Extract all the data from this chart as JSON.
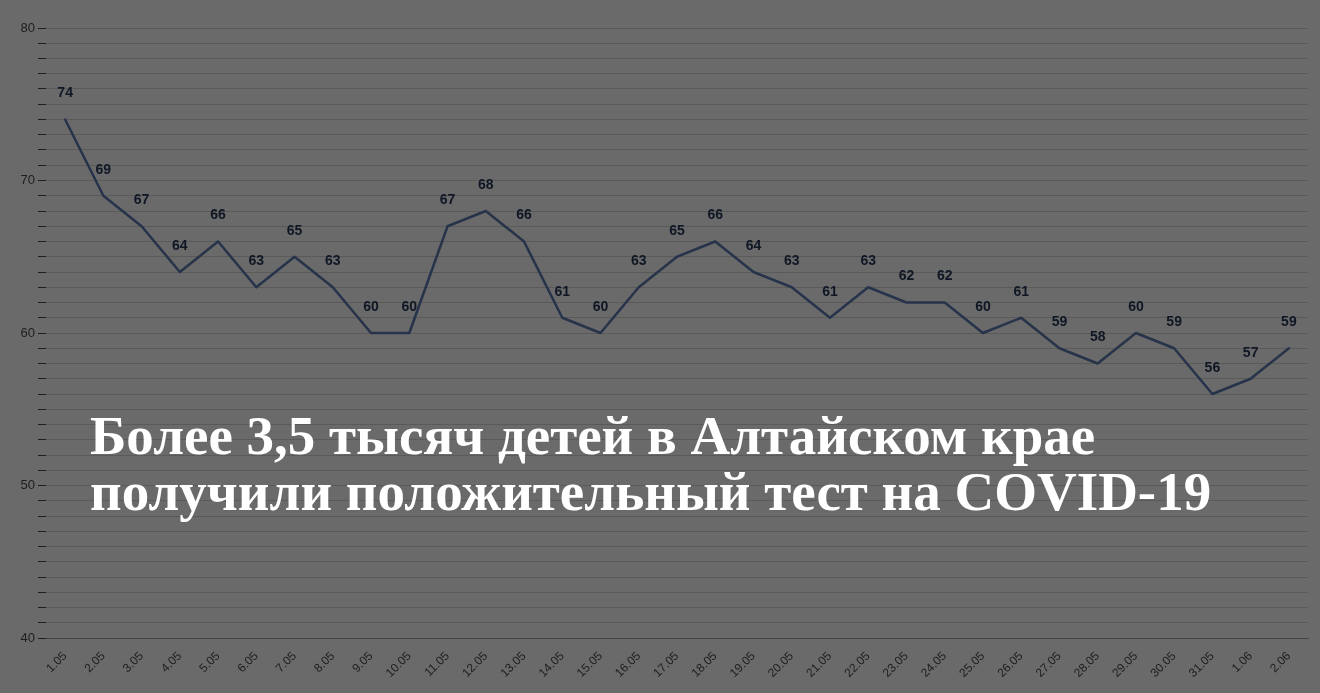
{
  "chart_data": {
    "type": "line",
    "title": "Более 3,5 тысяч детей в Алтайском крае получили положительный тест на COVID-19",
    "categories": [
      "1.05",
      "2.05",
      "3.05",
      "4.05",
      "5.05",
      "6.05",
      "7.05",
      "8.05",
      "9.05",
      "10.05",
      "11.05",
      "12.05",
      "13.05",
      "14.05",
      "15.05",
      "16.05",
      "17.05",
      "18.05",
      "19.05",
      "20.05",
      "21.05",
      "22.05",
      "23.05",
      "24.05",
      "25.05",
      "26.05",
      "27.05",
      "28.05",
      "29.05",
      "30.05",
      "31.05",
      "1.06",
      "2.06"
    ],
    "series": [
      {
        "color": "#26334a",
        "values": [
          74,
          69,
          67,
          64,
          66,
          63,
          65,
          63,
          60,
          60,
          67,
          68,
          66,
          61,
          60,
          63,
          65,
          66,
          64,
          63,
          61,
          63,
          62,
          62,
          60,
          61,
          59,
          58,
          60,
          59,
          56,
          57,
          59
        ]
      }
    ],
    "ylim": [
      40,
      80
    ],
    "yticks": [
      40,
      {
        "value": 41,
        "label": null
      },
      {
        "value": 42,
        "label": null
      },
      {
        "value": 43,
        "label": null
      },
      {
        "value": 44,
        "label": null
      },
      {
        "value": 45,
        "label": null
      },
      {
        "value": 46,
        "label": null
      },
      {
        "value": 47,
        "label": null
      },
      {
        "value": 48,
        "label": null
      },
      {
        "value": 49,
        "label": null
      },
      50,
      {
        "value": 51,
        "label": null
      },
      {
        "value": 52,
        "label": null
      },
      {
        "value": 53,
        "label": null
      },
      {
        "value": 54,
        "label": null
      },
      {
        "value": 55,
        "label": null
      },
      {
        "value": 56,
        "label": null
      },
      {
        "value": 57,
        "label": null
      },
      {
        "value": 58,
        "label": null
      },
      {
        "value": 59,
        "label": null
      },
      60,
      {
        "value": 61,
        "label": null
      },
      {
        "value": 62,
        "label": null
      },
      {
        "value": 63,
        "label": null
      },
      {
        "value": 64,
        "label": null
      },
      {
        "value": 65,
        "label": null
      },
      {
        "value": 66,
        "label": null
      },
      {
        "value": 67,
        "label": null
      },
      {
        "value": 68,
        "label": null
      },
      {
        "value": 69,
        "label": null
      },
      70,
      {
        "value": 71,
        "label": null
      },
      {
        "value": 72,
        "label": null
      },
      {
        "value": 73,
        "label": null
      },
      {
        "value": 74,
        "label": null
      },
      {
        "value": 75,
        "label": null
      },
      {
        "value": 76,
        "label": null
      },
      {
        "value": 77,
        "label": null
      },
      {
        "value": 78,
        "label": null
      },
      {
        "value": 79,
        "label": null
      },
      80
    ],
    "grid": "y",
    "legend": false,
    "marker": "none",
    "line_style": "solid",
    "data_labels": true
  }
}
